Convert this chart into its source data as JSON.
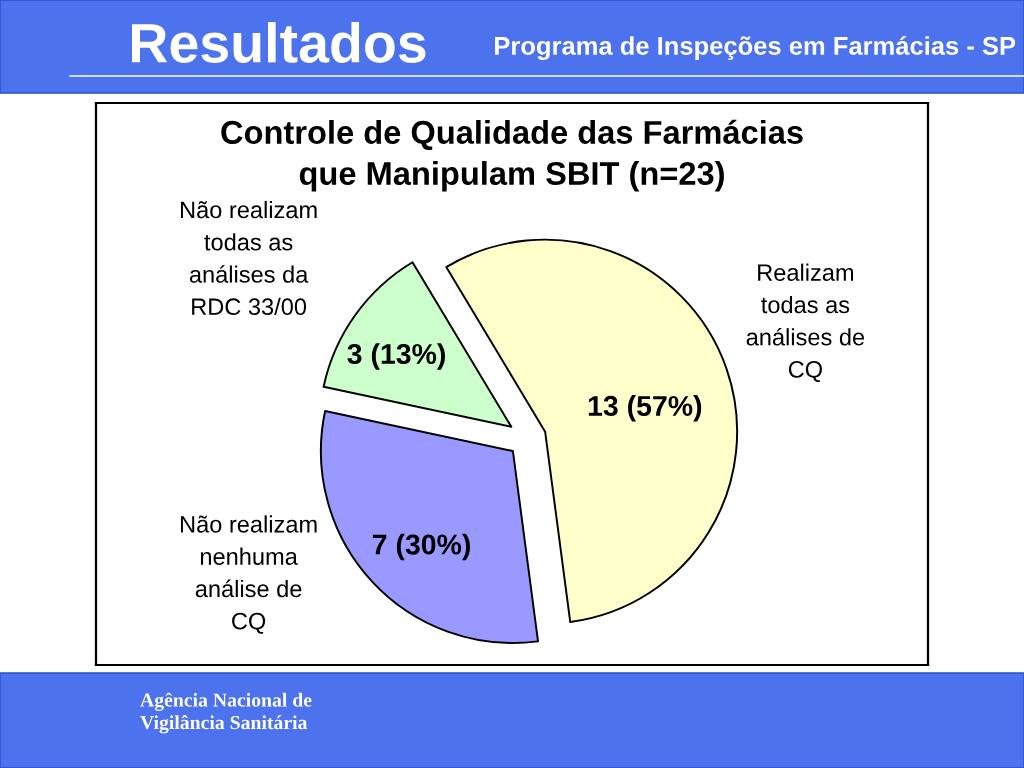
{
  "chart_data": {
    "type": "pie",
    "title": "Controle de Qualidade das Farmácias\nque Manipulam SBIT (n=23)",
    "categories": [
      "Realizam\ntodas as\nanálises de\nCQ",
      "Não realizam\nnenhuma\nanálise de\nCQ",
      "Não realizam\ntodas as\nanálises da\nRDC 33/00"
    ],
    "values": [
      13,
      7,
      3
    ],
    "colors": [
      "#ffffcc",
      "#9999ff",
      "#ccffcc"
    ],
    "value_labels": [
      "13 (57%)",
      "7 (30%)",
      "3 (13%)"
    ],
    "annotations": [
      "Resultados",
      "Programa de Inspeções em Farmácias - SP",
      "Agência Nacional de\nVigilância Sanitária"
    ]
  }
}
